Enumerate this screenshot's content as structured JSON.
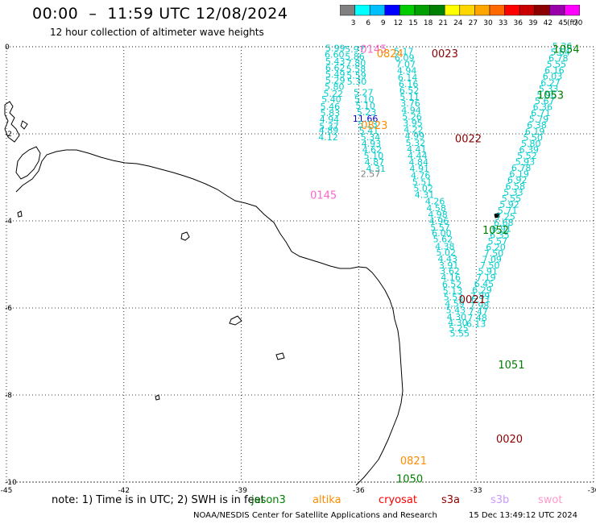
{
  "header": {
    "title": "00:00  –  11:59 UTC 12/08/2024",
    "subtitle": "12 hour collection of altimeter wave heights"
  },
  "color_scale": {
    "unit": "(ft)",
    "bins": [
      {
        "label": "3",
        "color": "#808080"
      },
      {
        "label": "6",
        "color": "#00ffff"
      },
      {
        "label": "9",
        "color": "#00bfff"
      },
      {
        "label": "12",
        "color": "#0000ff"
      },
      {
        "label": "15",
        "color": "#00cc00"
      },
      {
        "label": "18",
        "color": "#00a000"
      },
      {
        "label": "21",
        "color": "#008000"
      },
      {
        "label": "24",
        "color": "#ffff00"
      },
      {
        "label": "27",
        "color": "#ffd700"
      },
      {
        "label": "30",
        "color": "#ffa500"
      },
      {
        "label": "33",
        "color": "#ff6a00"
      },
      {
        "label": "36",
        "color": "#ff0000"
      },
      {
        "label": "39",
        "color": "#c80000"
      },
      {
        "label": "42",
        "color": "#8b0000"
      },
      {
        "label": "45",
        "color": "#9900aa"
      },
      {
        "label": "70",
        "color": "#ff00ff"
      }
    ]
  },
  "axes": {
    "x_ticks": [
      "-45",
      "-42",
      "-39",
      "-36",
      "-33",
      "-30"
    ],
    "y_ticks": [
      "0",
      "-2",
      "-4",
      "-6",
      "-8",
      "-10"
    ],
    "lon_range": [
      -45,
      -30
    ],
    "lat_range": [
      -10,
      0
    ]
  },
  "colors": {
    "cyan": "#00cccc",
    "orange": "#ff8c00",
    "darkred": "#8b0000",
    "green": "#008000",
    "pink": "#ff66cc",
    "blue": "#0000cc",
    "gray": "#808080",
    "land": "#000000"
  },
  "time_labels": [
    {
      "text": "0145",
      "color": "pink",
      "lon": -35.62,
      "lat": -0.05
    },
    {
      "text": "0824",
      "color": "orange",
      "lon": -35.2,
      "lat": -0.15
    },
    {
      "text": "0023",
      "color": "darkred",
      "lon": -33.8,
      "lat": -0.15
    },
    {
      "text": "1054",
      "color": "green",
      "lon": -30.7,
      "lat": -0.05
    },
    {
      "text": "1053",
      "color": "green",
      "lon": -31.1,
      "lat": -1.1
    },
    {
      "text": "0823",
      "color": "orange",
      "lon": -35.6,
      "lat": -1.8
    },
    {
      "text": "0022",
      "color": "darkred",
      "lon": -33.2,
      "lat": -2.1
    },
    {
      "text": "0145",
      "color": "pink",
      "lon": -36.9,
      "lat": -3.4
    },
    {
      "text": "1052",
      "color": "green",
      "lon": -32.5,
      "lat": -4.2
    },
    {
      "text": "0021",
      "color": "darkred",
      "lon": -33.1,
      "lat": -5.8
    },
    {
      "text": "1051",
      "color": "green",
      "lon": -32.1,
      "lat": -7.3
    },
    {
      "text": "0020",
      "color": "darkred",
      "lon": -32.15,
      "lat": -9.0
    },
    {
      "text": "0821",
      "color": "orange",
      "lon": -34.6,
      "lat": -9.5
    },
    {
      "text": "1050",
      "color": "green",
      "lon": -34.7,
      "lat": -9.92
    }
  ],
  "wave_heights": [
    {
      "v": "5.99",
      "color": "cyan",
      "lon": -36.6,
      "lat": -0.03
    },
    {
      "v": "5.97",
      "color": "cyan",
      "lon": -36.1,
      "lat": -0.06
    },
    {
      "v": "6.60",
      "color": "cyan",
      "lon": -36.62,
      "lat": -0.18
    },
    {
      "v": "5.86",
      "color": "cyan",
      "lon": -36.1,
      "lat": -0.22
    },
    {
      "v": "5.43",
      "color": "cyan",
      "lon": -36.6,
      "lat": -0.33
    },
    {
      "v": "7.80",
      "color": "cyan",
      "lon": -36.07,
      "lat": -0.37
    },
    {
      "v": "6.62",
      "color": "cyan",
      "lon": -36.6,
      "lat": -0.48
    },
    {
      "v": "5.58",
      "color": "cyan",
      "lon": -36.07,
      "lat": -0.51
    },
    {
      "v": "5.49",
      "color": "cyan",
      "lon": -36.6,
      "lat": -0.63
    },
    {
      "v": "5.59",
      "color": "cyan",
      "lon": -36.06,
      "lat": -0.66
    },
    {
      "v": "5.29",
      "color": "cyan",
      "lon": -36.6,
      "lat": -0.77
    },
    {
      "v": "5.30",
      "color": "cyan",
      "lon": -36.05,
      "lat": -0.8
    },
    {
      "v": "5.80",
      "color": "cyan",
      "lon": -36.62,
      "lat": -0.92
    },
    {
      "v": "5.22",
      "color": "cyan",
      "lon": -36.65,
      "lat": -1.07
    },
    {
      "v": "5.27",
      "color": "cyan",
      "lon": -35.88,
      "lat": -1.05
    },
    {
      "v": "5.40",
      "color": "cyan",
      "lon": -36.7,
      "lat": -1.2
    },
    {
      "v": "5.10",
      "color": "cyan",
      "lon": -35.86,
      "lat": -1.2
    },
    {
      "v": "5.46",
      "color": "cyan",
      "lon": -36.73,
      "lat": -1.37
    },
    {
      "v": "5.10",
      "color": "cyan",
      "lon": -35.83,
      "lat": -1.35
    },
    {
      "v": "5.83",
      "color": "cyan",
      "lon": -36.73,
      "lat": -1.52
    },
    {
      "v": "5.23",
      "color": "cyan",
      "lon": -35.8,
      "lat": -1.5
    },
    {
      "v": "4.94",
      "color": "cyan",
      "lon": -36.75,
      "lat": -1.67
    },
    {
      "v": "11.66",
      "color": "blue",
      "lon": -35.83,
      "lat": -1.65
    },
    {
      "v": "5.13",
      "color": "cyan",
      "lon": -35.77,
      "lat": -1.78
    },
    {
      "v": "5.37",
      "color": "cyan",
      "lon": -36.76,
      "lat": -1.82
    },
    {
      "v": "4.89",
      "color": "cyan",
      "lon": -36.77,
      "lat": -1.92
    },
    {
      "v": "5.41",
      "color": "cyan",
      "lon": -35.74,
      "lat": -1.93
    },
    {
      "v": "4.12",
      "color": "cyan",
      "lon": -36.78,
      "lat": -2.07
    },
    {
      "v": "5.34",
      "color": "cyan",
      "lon": -35.7,
      "lat": -2.07
    },
    {
      "v": "4.93",
      "color": "cyan",
      "lon": -35.68,
      "lat": -2.22
    },
    {
      "v": "4.62",
      "color": "cyan",
      "lon": -35.66,
      "lat": -2.36
    },
    {
      "v": "5.10",
      "color": "cyan",
      "lon": -35.62,
      "lat": -2.5
    },
    {
      "v": "4.87",
      "color": "cyan",
      "lon": -35.6,
      "lat": -2.65
    },
    {
      "v": "4.31",
      "color": "cyan",
      "lon": -35.56,
      "lat": -2.8
    },
    {
      "v": "2.57",
      "color": "gray",
      "lon": -35.7,
      "lat": -2.92
    },
    {
      "v": "5.17",
      "color": "cyan",
      "lon": -34.85,
      "lat": -0.1
    },
    {
      "v": "6.09",
      "color": "cyan",
      "lon": -34.83,
      "lat": -0.25
    },
    {
      "v": "7.07",
      "color": "cyan",
      "lon": -34.8,
      "lat": -0.4
    },
    {
      "v": "4.94",
      "color": "cyan",
      "lon": -34.77,
      "lat": -0.55
    },
    {
      "v": "6.14",
      "color": "cyan",
      "lon": -34.75,
      "lat": -0.7
    },
    {
      "v": "6.16",
      "color": "cyan",
      "lon": -34.73,
      "lat": -0.85
    },
    {
      "v": "6.52",
      "color": "cyan",
      "lon": -34.71,
      "lat": -1.0
    },
    {
      "v": "5.11",
      "color": "cyan",
      "lon": -34.7,
      "lat": -1.15
    },
    {
      "v": "3.76",
      "color": "cyan",
      "lon": -34.68,
      "lat": -1.3
    },
    {
      "v": "4.94",
      "color": "cyan",
      "lon": -34.66,
      "lat": -1.45
    },
    {
      "v": "5.26",
      "color": "cyan",
      "lon": -34.64,
      "lat": -1.6
    },
    {
      "v": "3.95",
      "color": "cyan",
      "lon": -34.62,
      "lat": -1.75
    },
    {
      "v": "4.22",
      "color": "cyan",
      "lon": -34.6,
      "lat": -1.9
    },
    {
      "v": "4.99",
      "color": "cyan",
      "lon": -34.57,
      "lat": -2.05
    },
    {
      "v": "5.32",
      "color": "cyan",
      "lon": -34.55,
      "lat": -2.2
    },
    {
      "v": "4.41",
      "color": "cyan",
      "lon": -34.52,
      "lat": -2.35
    },
    {
      "v": "4.44",
      "color": "cyan",
      "lon": -34.5,
      "lat": -2.5
    },
    {
      "v": "4.84",
      "color": "cyan",
      "lon": -34.47,
      "lat": -2.65
    },
    {
      "v": "4.91",
      "color": "cyan",
      "lon": -34.45,
      "lat": -2.8
    },
    {
      "v": "4.76",
      "color": "cyan",
      "lon": -34.42,
      "lat": -2.95
    },
    {
      "v": "5.51",
      "color": "cyan",
      "lon": -34.38,
      "lat": -3.1
    },
    {
      "v": "5.02",
      "color": "cyan",
      "lon": -34.35,
      "lat": -3.25
    },
    {
      "v": "4.31",
      "color": "cyan",
      "lon": -34.32,
      "lat": -3.4
    },
    {
      "v": "4.26",
      "color": "cyan",
      "lon": -34.05,
      "lat": -3.55
    },
    {
      "v": "4.58",
      "color": "cyan",
      "lon": -34.02,
      "lat": -3.7
    },
    {
      "v": "4.98",
      "color": "cyan",
      "lon": -33.98,
      "lat": -3.85
    },
    {
      "v": "4.96",
      "color": "cyan",
      "lon": -33.95,
      "lat": -4.0
    },
    {
      "v": "5.57",
      "color": "cyan",
      "lon": -33.92,
      "lat": -4.15
    },
    {
      "v": "6.00",
      "color": "cyan",
      "lon": -33.88,
      "lat": -4.28
    },
    {
      "v": "5.62",
      "color": "cyan",
      "lon": -33.85,
      "lat": -4.42
    },
    {
      "v": "4.38",
      "color": "cyan",
      "lon": -33.8,
      "lat": -4.58
    },
    {
      "v": "5.02",
      "color": "cyan",
      "lon": -33.77,
      "lat": -4.72
    },
    {
      "v": "4.43",
      "color": "cyan",
      "lon": -33.73,
      "lat": -4.87
    },
    {
      "v": "3.91",
      "color": "cyan",
      "lon": -33.7,
      "lat": -5.02
    },
    {
      "v": "3.62",
      "color": "cyan",
      "lon": -33.67,
      "lat": -5.15
    },
    {
      "v": "4.16",
      "color": "cyan",
      "lon": -33.65,
      "lat": -5.3
    },
    {
      "v": "6.52",
      "color": "cyan",
      "lon": -33.62,
      "lat": -5.45
    },
    {
      "v": "5.13",
      "color": "cyan",
      "lon": -33.6,
      "lat": -5.6
    },
    {
      "v": "5.53",
      "color": "cyan",
      "lon": -33.58,
      "lat": -5.75
    },
    {
      "v": "4.59",
      "color": "cyan",
      "lon": -33.55,
      "lat": -5.9
    },
    {
      "v": "5.43",
      "color": "cyan",
      "lon": -33.52,
      "lat": -6.05
    },
    {
      "v": "4.30",
      "color": "cyan",
      "lon": -33.5,
      "lat": -6.2
    },
    {
      "v": "4.30",
      "color": "cyan",
      "lon": -33.47,
      "lat": -6.33
    },
    {
      "v": "5.25",
      "color": "cyan",
      "lon": -33.45,
      "lat": -6.46
    },
    {
      "v": "5.55",
      "color": "cyan",
      "lon": -33.42,
      "lat": -6.58
    },
    {
      "v": "5.36",
      "color": "cyan",
      "lon": -30.8,
      "lat": 0.02
    },
    {
      "v": "5.64",
      "color": "cyan",
      "lon": -30.85,
      "lat": -0.12
    },
    {
      "v": "6.78",
      "color": "cyan",
      "lon": -30.9,
      "lat": -0.26
    },
    {
      "v": "5.55",
      "color": "cyan",
      "lon": -30.95,
      "lat": -0.4
    },
    {
      "v": "6.16",
      "color": "cyan",
      "lon": -31.0,
      "lat": -0.54
    },
    {
      "v": "6.03",
      "color": "cyan",
      "lon": -31.05,
      "lat": -0.68
    },
    {
      "v": "6.27",
      "color": "cyan",
      "lon": -31.1,
      "lat": -0.82
    },
    {
      "v": "5.33",
      "color": "cyan",
      "lon": -31.15,
      "lat": -0.96
    },
    {
      "v": "5.96",
      "color": "cyan",
      "lon": -31.2,
      "lat": -1.1
    },
    {
      "v": "5.67",
      "color": "cyan",
      "lon": -31.25,
      "lat": -1.24
    },
    {
      "v": "6.36",
      "color": "cyan",
      "lon": -31.3,
      "lat": -1.38
    },
    {
      "v": "6.71",
      "color": "cyan",
      "lon": -31.35,
      "lat": -1.52
    },
    {
      "v": "5.79",
      "color": "cyan",
      "lon": -31.4,
      "lat": -1.66
    },
    {
      "v": "6.38",
      "color": "cyan",
      "lon": -31.45,
      "lat": -1.8
    },
    {
      "v": "6.19",
      "color": "cyan",
      "lon": -31.5,
      "lat": -1.94
    },
    {
      "v": "5.50",
      "color": "cyan",
      "lon": -31.55,
      "lat": -2.08
    },
    {
      "v": "5.80",
      "color": "cyan",
      "lon": -31.6,
      "lat": -2.22
    },
    {
      "v": "6.39",
      "color": "cyan",
      "lon": -31.65,
      "lat": -2.36
    },
    {
      "v": "5.52",
      "color": "cyan",
      "lon": -31.7,
      "lat": -2.5
    },
    {
      "v": "5.93",
      "color": "cyan",
      "lon": -31.75,
      "lat": -2.64
    },
    {
      "v": "6.78",
      "color": "cyan",
      "lon": -31.85,
      "lat": -2.78
    },
    {
      "v": "6.19",
      "color": "cyan",
      "lon": -31.9,
      "lat": -2.92
    },
    {
      "v": "6.92",
      "color": "cyan",
      "lon": -31.95,
      "lat": -3.06
    },
    {
      "v": "6.58",
      "color": "cyan",
      "lon": -32.0,
      "lat": -3.2
    },
    {
      "v": "5.33",
      "color": "cyan",
      "lon": -32.05,
      "lat": -3.34
    },
    {
      "v": "5.55",
      "color": "cyan",
      "lon": -32.1,
      "lat": -3.48
    },
    {
      "v": "5.92",
      "color": "cyan",
      "lon": -32.15,
      "lat": -3.62
    },
    {
      "v": "5.71",
      "color": "cyan",
      "lon": -32.2,
      "lat": -3.76
    },
    {
      "v": "7.25",
      "color": "cyan",
      "lon": -32.25,
      "lat": -3.9
    },
    {
      "v": "6.68",
      "color": "cyan",
      "lon": -32.3,
      "lat": -4.04
    },
    {
      "v": "6.91",
      "color": "cyan",
      "lon": -32.35,
      "lat": -4.18
    },
    {
      "v": "6.35",
      "color": "cyan",
      "lon": -32.4,
      "lat": -4.32
    },
    {
      "v": "5.57",
      "color": "cyan",
      "lon": -32.45,
      "lat": -4.46
    },
    {
      "v": "6.20",
      "color": "cyan",
      "lon": -32.5,
      "lat": -4.6
    },
    {
      "v": "7.50",
      "color": "cyan",
      "lon": -32.55,
      "lat": -4.74
    },
    {
      "v": "7.09",
      "color": "cyan",
      "lon": -32.6,
      "lat": -4.88
    },
    {
      "v": "7.50",
      "color": "cyan",
      "lon": -32.65,
      "lat": -5.02
    },
    {
      "v": "5.91",
      "color": "cyan",
      "lon": -32.7,
      "lat": -5.16
    },
    {
      "v": "7.19",
      "color": "cyan",
      "lon": -32.75,
      "lat": -5.3
    },
    {
      "v": "6.45",
      "color": "cyan",
      "lon": -32.8,
      "lat": -5.44
    },
    {
      "v": "6.29",
      "color": "cyan",
      "lon": -32.85,
      "lat": -5.58
    },
    {
      "v": "7.89",
      "color": "cyan",
      "lon": -32.9,
      "lat": -5.72
    },
    {
      "v": "6.71",
      "color": "cyan",
      "lon": -32.88,
      "lat": -5.8
    },
    {
      "v": "7.98",
      "color": "cyan",
      "lon": -32.92,
      "lat": -5.94
    },
    {
      "v": "7.47",
      "color": "cyan",
      "lon": -32.95,
      "lat": -6.08
    },
    {
      "v": "7.48",
      "color": "cyan",
      "lon": -32.97,
      "lat": -6.22
    },
    {
      "v": "6.13",
      "color": "cyan",
      "lon": -33.0,
      "lat": -6.36
    }
  ],
  "legend": {
    "note": "note:  1) Time is in UTC;  2) SWH is in feet",
    "items": [
      {
        "label": "jason3",
        "color": "#008000"
      },
      {
        "label": "altika",
        "color": "#ff8c00"
      },
      {
        "label": "cryosat",
        "color": "#ff0000"
      },
      {
        "label": "s3a",
        "color": "#8b0000"
      },
      {
        "label": "s3b",
        "color": "#cc99ff"
      },
      {
        "label": "swot",
        "color": "#ff99cc"
      }
    ]
  },
  "footer": {
    "left": "NOAA/NESDIS Center for Satellite Applications and Research",
    "right": "15 Dec 13:49:12 UTC 2024"
  }
}
